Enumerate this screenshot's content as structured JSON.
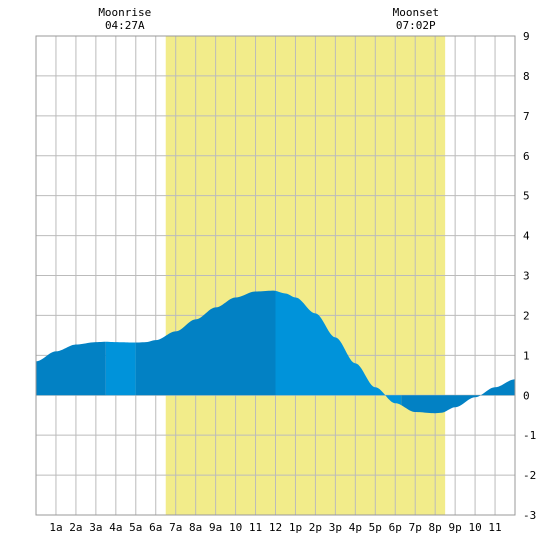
{
  "chart_data": {
    "type": "area",
    "title": "",
    "xlabel": "",
    "ylabel": "",
    "x_range": [
      0,
      24
    ],
    "ylim": [
      -3,
      9
    ],
    "y_ticks": [
      -3,
      -2,
      -1,
      0,
      1,
      2,
      3,
      4,
      5,
      6,
      7,
      8,
      9
    ],
    "x_tick_labels": [
      "1a",
      "2a",
      "3a",
      "4a",
      "5a",
      "6a",
      "7a",
      "8a",
      "9a",
      "10",
      "11",
      "12",
      "1p",
      "2p",
      "3p",
      "4p",
      "5p",
      "6p",
      "7p",
      "8p",
      "9p",
      "10",
      "11"
    ],
    "grid": true,
    "daylight_band": {
      "start_hour": 6.5,
      "end_hour": 20.5,
      "color": "#f2ec8a"
    },
    "moonrise": {
      "label": "Moonrise",
      "time": "04:27A",
      "hour": 4.45
    },
    "moonset": {
      "label": "Moonset",
      "time": "07:02P",
      "hour": 19.03
    },
    "tide_curve": {
      "x": [
        0,
        1,
        2,
        3,
        3.5,
        4,
        5,
        5.5,
        6,
        7,
        8,
        9,
        10,
        11,
        11.9,
        12.5,
        13,
        14,
        15,
        16,
        17,
        18,
        19,
        20,
        20.3,
        21,
        22,
        23,
        24
      ],
      "y": [
        0.85,
        1.1,
        1.27,
        1.33,
        1.34,
        1.33,
        1.32,
        1.33,
        1.38,
        1.6,
        1.9,
        2.2,
        2.45,
        2.6,
        2.62,
        2.55,
        2.45,
        2.05,
        1.45,
        0.8,
        0.2,
        -0.2,
        -0.42,
        -0.45,
        -0.44,
        -0.3,
        -0.05,
        0.2,
        0.4
      ]
    },
    "shade_segments": [
      {
        "x0": 0,
        "x1": 3.5,
        "color": "#0281c4"
      },
      {
        "x0": 3.5,
        "x1": 5,
        "color": "#0093da"
      },
      {
        "x0": 5,
        "x1": 12,
        "color": "#0281c4"
      },
      {
        "x0": 12,
        "x1": 18.3,
        "color": "#0093da"
      },
      {
        "x0": 18.3,
        "x1": 24,
        "color": "#0281c4"
      }
    ]
  }
}
